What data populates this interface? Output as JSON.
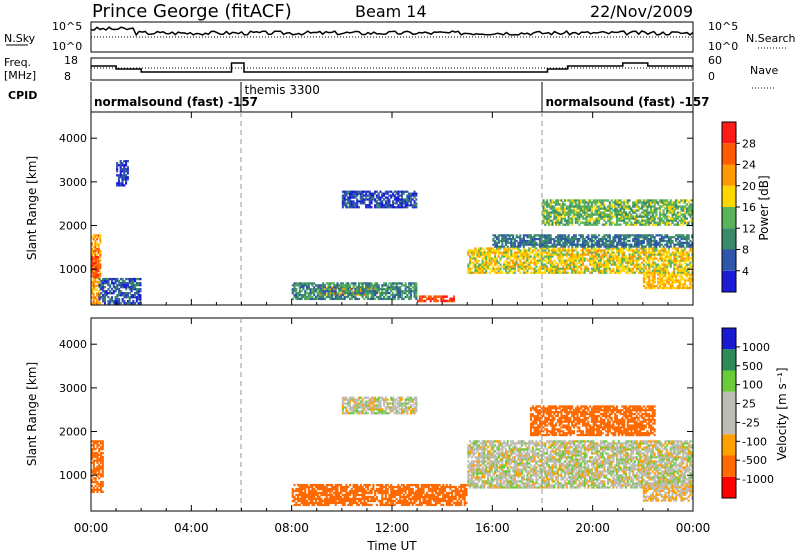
{
  "header": {
    "station": "Prince George (fitACF)",
    "beam": "Beam 14",
    "date": "22/Nov/2009"
  },
  "panels": {
    "nsky": {
      "left_label": "N.Sky",
      "right_label": "N.Search",
      "ticks_left": [
        "10^5",
        "10^0"
      ],
      "ticks_right": [
        "10^5",
        "10^0"
      ]
    },
    "freq": {
      "left_label": "Freq.",
      "left_unit": "[MHz]",
      "right_label": "Nave",
      "ticks_left": [
        "18",
        "8"
      ],
      "ticks_right": [
        "60",
        "0"
      ]
    },
    "cpid": {
      "label": "CPID",
      "segments": [
        {
          "name": "normalsound (fast)",
          "value": "-157",
          "start": 0.0,
          "end": 6.0
        },
        {
          "name": "themis",
          "value": "3300",
          "start": 6.0,
          "end": 18.0
        },
        {
          "name": "normalsound (fast)",
          "value": "-157",
          "start": 18.0,
          "end": 24.0
        }
      ]
    }
  },
  "colorbars": {
    "power": {
      "title": "Power [dB]",
      "labels": [
        "28",
        "24",
        "20",
        "16",
        "12",
        "8",
        "4"
      ]
    },
    "velocity": {
      "title": "Velocity [m s⁻¹]",
      "labels": [
        "1000",
        "500",
        "100",
        "25",
        "-25",
        "-100",
        "-500",
        "-1000"
      ]
    }
  },
  "colors": {
    "power": [
      "#1c1cd8",
      "#2f56a8",
      "#3a8a6a",
      "#5ab25a",
      "#ffd700",
      "#ff9a00",
      "#ff5a00",
      "#ff1a1a"
    ],
    "velocity": [
      "#ff0000",
      "#ff6a00",
      "#ff9f00",
      "#bdbdb5",
      "#bdbdb5",
      "#6bcc39",
      "#2e8b57",
      "#1a1ad0"
    ]
  },
  "chart_data": [
    {
      "type": "heatmap",
      "name": "power",
      "xlabel": "",
      "ylabel": "Slant Range [km]",
      "xlim": [
        0,
        24
      ],
      "ylim": [
        180,
        4600
      ],
      "yticks": [
        1000,
        2000,
        3000,
        4000
      ],
      "colorbar_title": "Power [dB]",
      "regions": [
        {
          "t": [
            0.0,
            0.4
          ],
          "r": [
            200,
            1800
          ],
          "v": 22
        },
        {
          "t": [
            0.0,
            0.3
          ],
          "r": [
            800,
            1300
          ],
          "v": 28
        },
        {
          "t": [
            0.3,
            2.0
          ],
          "r": [
            200,
            800
          ],
          "v": 6
        },
        {
          "t": [
            1.0,
            1.5
          ],
          "r": [
            2900,
            3500
          ],
          "v": 4
        },
        {
          "t": [
            9.0,
            11.5
          ],
          "r": [
            400,
            600
          ],
          "v": 22
        },
        {
          "t": [
            8.0,
            13.0
          ],
          "r": [
            300,
            700
          ],
          "v": 10
        },
        {
          "t": [
            13.0,
            14.5
          ],
          "r": [
            250,
            400
          ],
          "v": 28
        },
        {
          "t": [
            10.0,
            13.0
          ],
          "r": [
            2400,
            2800
          ],
          "v": 5
        },
        {
          "t": [
            15.0,
            24.0
          ],
          "r": [
            900,
            1500
          ],
          "v": 18
        },
        {
          "t": [
            16.0,
            24.0
          ],
          "r": [
            1500,
            1800
          ],
          "v": 8
        },
        {
          "t": [
            18.0,
            24.0
          ],
          "r": [
            2000,
            2600
          ],
          "v": 14
        },
        {
          "t": [
            22.0,
            24.0
          ],
          "r": [
            550,
            900
          ],
          "v": 20
        }
      ]
    },
    {
      "type": "heatmap",
      "name": "velocity",
      "xlabel": "Time UT",
      "ylabel": "Slant Range [km]",
      "xlim": [
        0,
        24
      ],
      "ylim": [
        180,
        4600
      ],
      "yticks": [
        1000,
        2000,
        3000,
        4000
      ],
      "xticks": [
        "00:00",
        "04:00",
        "08:00",
        "12:00",
        "16:00",
        "20:00",
        "00:00"
      ],
      "colorbar_title": "Velocity [m s⁻¹]",
      "regions": [
        {
          "t": [
            0.0,
            0.5
          ],
          "r": [
            600,
            1800
          ],
          "v": -300
        },
        {
          "t": [
            8.0,
            15.0
          ],
          "r": [
            300,
            800
          ],
          "v": -150
        },
        {
          "t": [
            15.0,
            24.0
          ],
          "r": [
            700,
            1800
          ],
          "v": 0
        },
        {
          "t": [
            17.5,
            22.5
          ],
          "r": [
            1900,
            2600
          ],
          "v": -300
        },
        {
          "t": [
            10.0,
            13.0
          ],
          "r": [
            2400,
            2800
          ],
          "v": 0
        },
        {
          "t": [
            22.0,
            24.0
          ],
          "r": [
            400,
            800
          ],
          "v": -20
        }
      ]
    }
  ]
}
